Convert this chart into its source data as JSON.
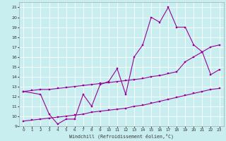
{
  "bg_color": "#c8eef0",
  "line_color": "#990099",
  "line1_x": [
    0,
    1,
    2,
    3,
    4,
    5,
    6,
    7,
    8,
    9,
    10,
    11,
    12,
    13,
    14,
    15,
    16,
    17,
    18,
    19,
    20,
    21,
    22,
    23
  ],
  "line1_y": [
    12.5,
    12.6,
    12.7,
    12.7,
    12.8,
    12.9,
    13.0,
    13.1,
    13.2,
    13.3,
    13.4,
    13.5,
    13.6,
    13.7,
    13.8,
    14.0,
    14.1,
    14.3,
    14.5,
    15.5,
    16.0,
    16.5,
    17.0,
    17.2
  ],
  "line2_x": [
    0,
    1,
    2,
    3,
    4,
    5,
    6,
    7,
    8,
    9,
    10,
    11,
    12,
    13,
    14,
    15,
    16,
    17,
    18,
    19,
    20,
    21,
    22,
    23
  ],
  "line2_y": [
    9.5,
    9.6,
    9.7,
    9.8,
    9.9,
    10.0,
    10.1,
    10.2,
    10.4,
    10.5,
    10.6,
    10.7,
    10.8,
    11.0,
    11.1,
    11.3,
    11.5,
    11.7,
    11.9,
    12.1,
    12.3,
    12.5,
    12.7,
    12.8
  ],
  "line3_x": [
    0,
    2,
    3,
    4,
    5,
    6,
    7,
    8,
    9,
    10,
    11,
    12,
    13,
    14,
    15,
    16,
    17,
    18,
    19,
    20,
    21,
    22,
    23
  ],
  "line3_y": [
    12.5,
    12.2,
    10.2,
    9.2,
    9.7,
    9.7,
    12.2,
    11.0,
    13.2,
    13.5,
    14.8,
    12.2,
    16.0,
    17.2,
    20.0,
    19.5,
    21.0,
    19.0,
    19.0,
    17.2,
    16.5,
    14.2,
    14.7
  ],
  "xlabel": "Windchill (Refroidissement éolien,°C)",
  "xlim": [
    -0.5,
    23.5
  ],
  "ylim": [
    9,
    21.5
  ],
  "xticks": [
    0,
    1,
    2,
    3,
    4,
    5,
    6,
    7,
    8,
    9,
    10,
    11,
    12,
    13,
    14,
    15,
    16,
    17,
    18,
    19,
    20,
    21,
    22,
    23
  ],
  "yticks": [
    9,
    10,
    11,
    12,
    13,
    14,
    15,
    16,
    17,
    18,
    19,
    20,
    21
  ]
}
